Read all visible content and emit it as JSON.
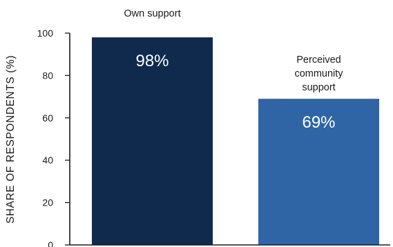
{
  "chart_data": {
    "type": "bar",
    "title": "",
    "xlabel": "",
    "ylabel": "SHARE OF RESPONDENTS (%)",
    "ylim": [
      0,
      100
    ],
    "yticks": [
      0,
      20,
      40,
      60,
      80,
      100
    ],
    "grid": false,
    "bars": [
      {
        "caption": "Own support",
        "value": 98,
        "value_label": "98%",
        "color": "#0f2a4d"
      },
      {
        "caption": "Perceived community support",
        "caption_lines": [
          "Perceived",
          "community",
          "support"
        ],
        "value": 69,
        "value_label": "69%",
        "color": "#2f65a5"
      }
    ]
  },
  "colors": {
    "axis": "#1a1a1a",
    "text": "#1a1a1a",
    "value_text": "#ffffff"
  }
}
